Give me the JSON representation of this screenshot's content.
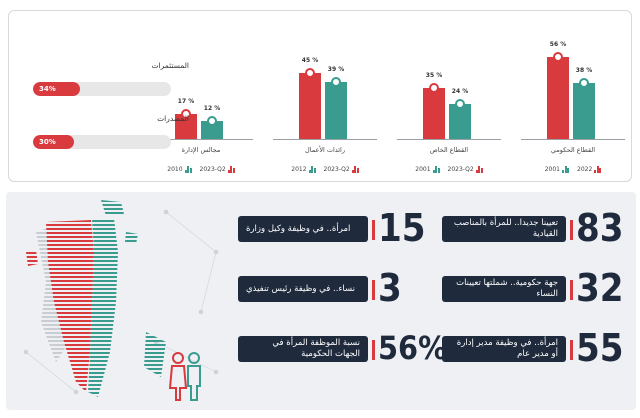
{
  "chart_data": {
    "type": "bar",
    "groups": [
      {
        "name": "القطاع الحكومي",
        "red": 56,
        "teal": 38,
        "red_label": "56 %",
        "teal_label": "38 %",
        "legend_red": "2022",
        "legend_teal": "2001"
      },
      {
        "name": "القطاع الخاص",
        "red": 35,
        "teal": 24,
        "red_label": "35 %",
        "teal_label": "24 %",
        "legend_red": "2023-Q2",
        "legend_teal": "2001"
      },
      {
        "name": "رائدات الأعمال",
        "red": 45,
        "teal": 39,
        "red_label": "45 %",
        "teal_label": "39 %",
        "legend_red": "2023-Q2",
        "legend_teal": "2012"
      },
      {
        "name": "مجالس الإدارة",
        "red": 17,
        "teal": 12,
        "red_label": "17 %",
        "teal_label": "12 %",
        "legend_red": "2023-Q2",
        "legend_teal": "2010"
      }
    ],
    "colors": {
      "red": "#d93a3e",
      "teal": "#3a9c8f"
    }
  },
  "progress": [
    {
      "label": "المستثمرات",
      "value": 34,
      "text": "34%"
    },
    {
      "label": "المصدرات",
      "value": 30,
      "text": "30%"
    }
  ],
  "stats": {
    "right": [
      {
        "num": "83",
        "text": "تعيينا جديدا.. للمرأة بالمناصب القيادية"
      },
      {
        "num": "32",
        "text": "جهة حكومية.. شملتها تعيينات النساء"
      },
      {
        "num": "55",
        "text": "امرأة.. في وظيفة مدير إدارة أو مدير عام"
      }
    ],
    "left": [
      {
        "num": "15",
        "text": "امرأة.. في وظيفة وكيل وزارة"
      },
      {
        "num": "3",
        "text": "نساء.. في وظيفة رئيس تنفيذي"
      },
      {
        "num": "56%",
        "text": "نسبة الموظفة المرأة في الجهات الحكومية"
      }
    ]
  },
  "colors": {
    "accent_red": "#d93a3e",
    "accent_teal": "#3a9c8f",
    "dark_navy": "#1f2b3d"
  },
  "icons": {
    "legend_icon": "bar-chart-icon",
    "people_icon": "woman-man-icon",
    "map": "bahrain-map-icon"
  }
}
